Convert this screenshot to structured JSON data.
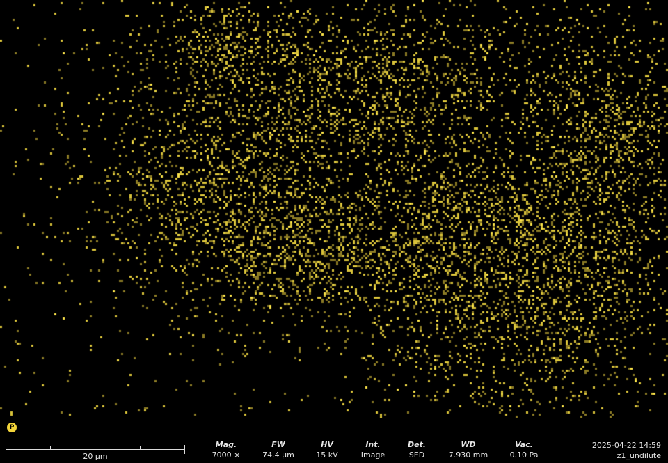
{
  "map": {
    "element_badge": "P",
    "dot_color": "#d8c23a",
    "bright_dot_color": "#f7e04a"
  },
  "scalebar": {
    "label": "20 µm"
  },
  "params": [
    {
      "label": "Mag.",
      "value": "7000 ×"
    },
    {
      "label": "FW",
      "value": "74.4 µm"
    },
    {
      "label": "HV",
      "value": "15 kV"
    },
    {
      "label": "Int.",
      "value": "Image"
    },
    {
      "label": "Det.",
      "value": "SED"
    },
    {
      "label": "WD",
      "value": "7.930 mm"
    },
    {
      "label": "Vac.",
      "value": "0.10 Pa"
    }
  ],
  "info": {
    "datetime": "2025-04-22 14:59",
    "sample_name": "z1_undilute"
  }
}
